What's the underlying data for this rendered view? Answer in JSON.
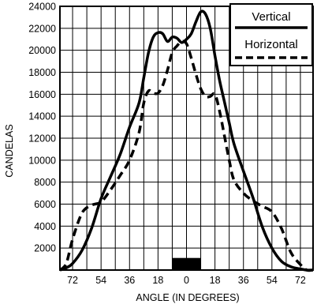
{
  "chart_data": {
    "type": "line",
    "xlabel": "ANGLE (IN DEGREES)",
    "ylabel": "CANDELAS",
    "xlim": [
      -80,
      80
    ],
    "ylim": [
      0,
      24000
    ],
    "grid": true,
    "legend_position": "top-right",
    "x_tick_labels": [
      "72",
      "54",
      "36",
      "18",
      "0",
      "18",
      "36",
      "54",
      "72"
    ],
    "y_tick_labels": [
      "2000",
      "4000",
      "6000",
      "8000",
      "10000",
      "12000",
      "14000",
      "16000",
      "18000",
      "20000",
      "22000",
      "24000"
    ],
    "series": [
      {
        "name": "Vertical",
        "style": "solid",
        "color": "#000000",
        "x": [
          -80,
          -76,
          -72,
          -66,
          -60,
          -54,
          -48,
          -42,
          -36,
          -30,
          -27,
          -24,
          -21,
          -18,
          -15,
          -12,
          -9,
          -6,
          -3,
          0,
          3,
          6,
          9,
          12,
          15,
          18,
          21,
          24,
          27,
          30,
          36,
          42,
          48,
          54,
          60,
          66,
          72,
          76,
          80
        ],
        "y": [
          0,
          200,
          600,
          1800,
          3800,
          6500,
          8500,
          10500,
          13000,
          15200,
          17500,
          19800,
          21200,
          21600,
          21500,
          20800,
          21200,
          21100,
          20700,
          21000,
          21500,
          22600,
          23500,
          23300,
          22000,
          19500,
          17200,
          15300,
          13400,
          11500,
          9000,
          6600,
          3900,
          2000,
          800,
          300,
          100,
          0,
          0
        ]
      },
      {
        "name": "Horizontal",
        "style": "dashed",
        "color": "#000000",
        "x": [
          -80,
          -76,
          -72,
          -66,
          -60,
          -54,
          -48,
          -42,
          -36,
          -30,
          -27,
          -24,
          -21,
          -18,
          -15,
          -12,
          -9,
          -6,
          -3,
          0,
          3,
          6,
          9,
          12,
          15,
          18,
          21,
          24,
          27,
          30,
          36,
          42,
          48,
          54,
          60,
          66,
          72,
          76,
          80
        ],
        "y": [
          0,
          600,
          2800,
          5200,
          5900,
          6200,
          7300,
          8600,
          10000,
          12500,
          15200,
          16300,
          16100,
          16100,
          16800,
          18200,
          19800,
          20400,
          20800,
          20600,
          19300,
          17800,
          16500,
          15800,
          15800,
          16000,
          14400,
          12200,
          10000,
          8200,
          7000,
          6300,
          5800,
          5300,
          3800,
          1600,
          500,
          0,
          0
        ]
      }
    ],
    "annotations": [
      {
        "type": "marker",
        "shape": "filled-rectangle",
        "x_range": [
          -9,
          9
        ],
        "y_range": [
          0,
          1100
        ],
        "color": "#000000"
      }
    ]
  }
}
